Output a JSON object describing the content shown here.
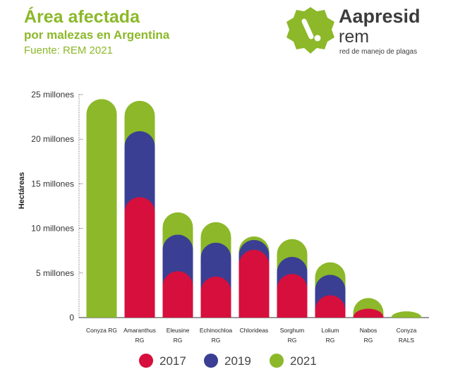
{
  "header": {
    "title": "Área afectada",
    "subtitle": "por malezas en Argentina",
    "source": "Fuente: REM 2021"
  },
  "logo": {
    "name": "Aapresid",
    "sub": "rem",
    "tagline": "red de manejo de plagas",
    "color": "#8cb829"
  },
  "chart_data": {
    "type": "bar",
    "ylabel": "Hectáreas",
    "ylim": [
      0,
      25000000
    ],
    "yticks": [
      0,
      5000000,
      10000000,
      15000000,
      20000000,
      25000000
    ],
    "ytick_labels": [
      "0",
      "5 millones",
      "10 millones",
      "15 millones",
      "20 millones",
      "25 millones"
    ],
    "categories": [
      [
        "Conyza RG"
      ],
      [
        "Amaranthus",
        "RG"
      ],
      [
        "Eleusine",
        "RG"
      ],
      [
        "Echinochloa",
        "RG"
      ],
      [
        "Chlorideas"
      ],
      [
        "Sorghum",
        "RG"
      ],
      [
        "Lolium",
        "RG"
      ],
      [
        "Nabos",
        "RG"
      ],
      [
        "Conyza",
        "RALS"
      ]
    ],
    "series": [
      {
        "name": "2021",
        "color": "#8cb829",
        "values": [
          24.5,
          24.3,
          11.8,
          10.7,
          9.1,
          8.8,
          6.2,
          2.2,
          0.7
        ]
      },
      {
        "name": "2019",
        "color": "#3a3f93",
        "values": [
          null,
          20.9,
          9.3,
          8.4,
          8.7,
          6.8,
          4.8,
          null,
          null
        ]
      },
      {
        "name": "2017",
        "color": "#d60f3d",
        "values": [
          null,
          13.5,
          5.2,
          4.6,
          7.6,
          4.9,
          2.5,
          1.0,
          null
        ]
      }
    ],
    "value_unit": "millones",
    "grid": false,
    "legend_position": "bottom",
    "legend": [
      {
        "label": "2017",
        "color": "#d60f3d"
      },
      {
        "label": "2019",
        "color": "#3a3f93"
      },
      {
        "label": "2021",
        "color": "#8cb829"
      }
    ]
  }
}
